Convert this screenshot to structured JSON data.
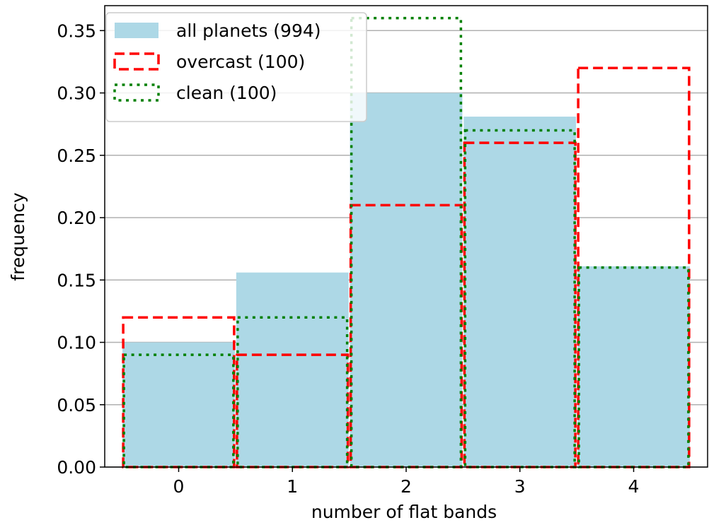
{
  "chart_data": {
    "type": "bar",
    "title": "",
    "xlabel": "number of flat bands",
    "ylabel": "frequency",
    "categories": [
      0,
      1,
      2,
      3,
      4
    ],
    "xlim": [
      -0.65,
      4.65
    ],
    "ylim": [
      0,
      0.37
    ],
    "x_ticks": [
      "0",
      "1",
      "2",
      "3",
      "4"
    ],
    "y_ticks": [
      "0.00",
      "0.05",
      "0.10",
      "0.15",
      "0.20",
      "0.25",
      "0.30",
      "0.35"
    ],
    "grid": "horizontal",
    "legend_position": "upper-left",
    "series": [
      {
        "name": "all planets (994)",
        "style": "filled",
        "color": "#add8e6",
        "values": [
          0.1,
          0.156,
          0.3,
          0.281,
          0.161
        ]
      },
      {
        "name": "overcast (100)",
        "style": "dashed-outline",
        "color": "#ff0000",
        "values": [
          0.12,
          0.09,
          0.21,
          0.26,
          0.32
        ]
      },
      {
        "name": "clean (100)",
        "style": "dotted-outline",
        "color": "#008000",
        "values": [
          0.09,
          0.12,
          0.36,
          0.27,
          0.16
        ]
      }
    ]
  }
}
